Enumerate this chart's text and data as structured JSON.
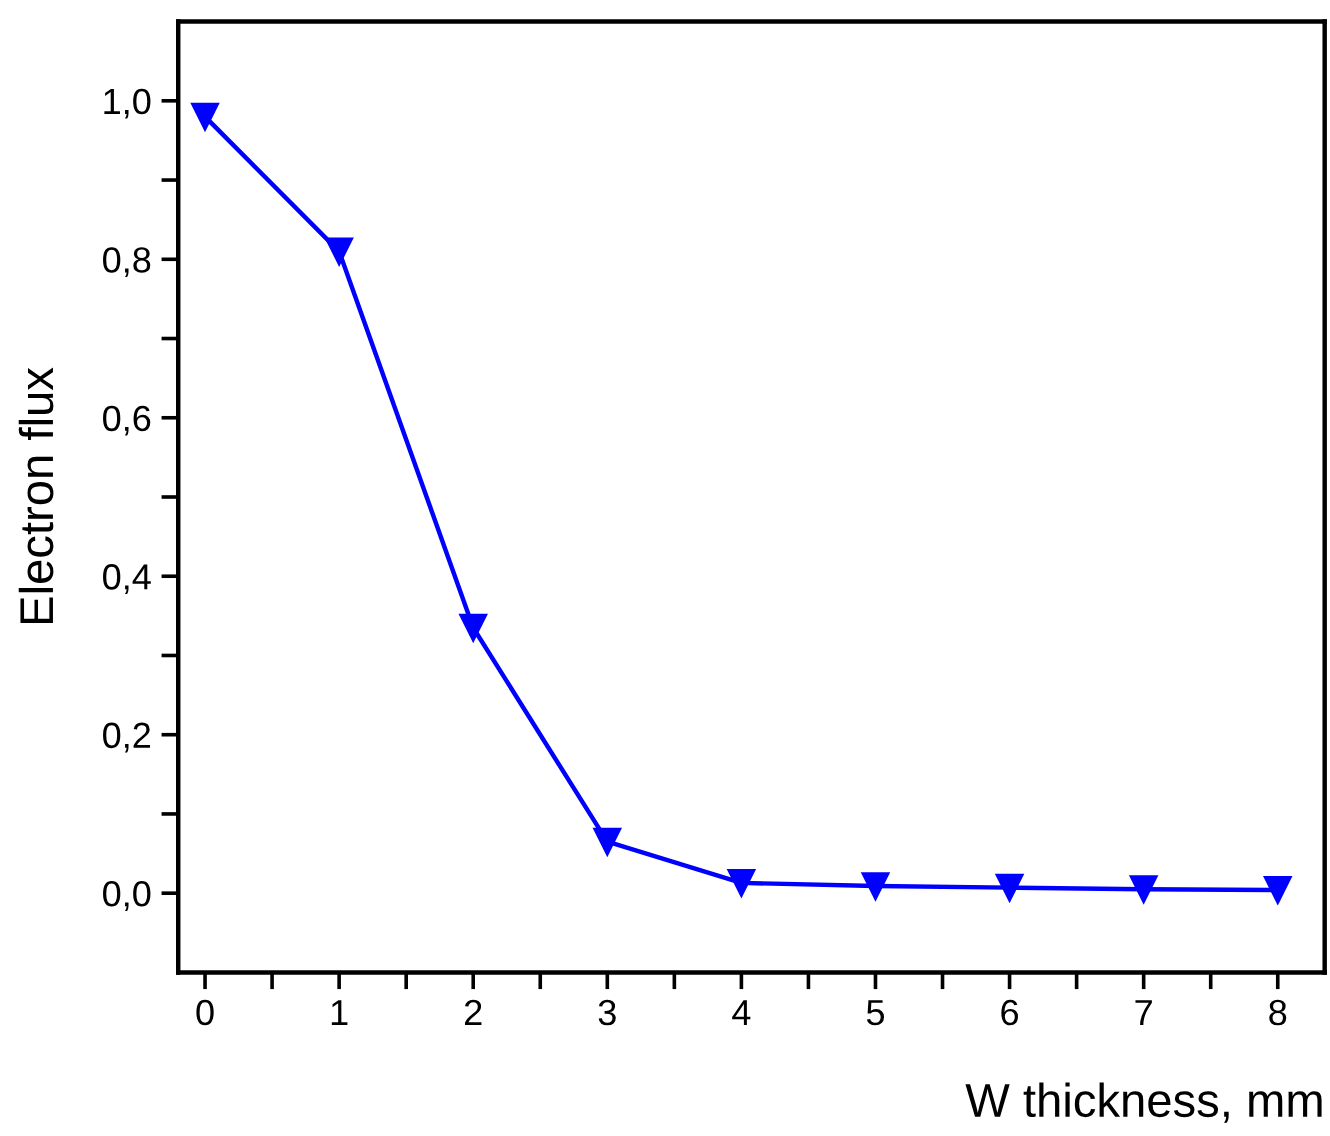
{
  "chart_data": {
    "type": "line",
    "xlabel": "W thickness, mm",
    "ylabel": "Electron flux",
    "x": [
      0,
      1,
      2,
      3,
      4,
      5,
      6,
      7,
      8
    ],
    "series": [
      {
        "color": "#0000ff",
        "values": [
          0.98,
          0.81,
          0.335,
          0.065,
          0.013,
          0.009,
          0.007,
          0.005,
          0.004
        ]
      }
    ],
    "marker": "triangle_down_alias",
    "line_style": "solid",
    "grid": false,
    "legend": false,
    "xlim": [
      -0.2,
      8.35
    ],
    "ylim": [
      -0.1,
      1.1
    ],
    "xticks": [
      0,
      {
        "value": 0.5,
        "label": null
      },
      1,
      {
        "value": 1.5,
        "label": null
      },
      2,
      {
        "value": 2.5,
        "label": null
      },
      3,
      {
        "value": 3.5,
        "label": null
      },
      4,
      {
        "value": 4.5,
        "label": null
      },
      5,
      {
        "value": 5.5,
        "label": null
      },
      6,
      {
        "value": 6.5,
        "label": null
      },
      7,
      {
        "value": 7.5,
        "label": null
      },
      8
    ],
    "yticks": [
      {
        "value": 0,
        "label": "0,0"
      },
      {
        "value": 0.1,
        "label": null
      },
      {
        "value": 0.2,
        "label": "0,2"
      },
      {
        "value": 0.3,
        "label": null
      },
      {
        "value": 0.4,
        "label": "0,4"
      },
      {
        "value": 0.5,
        "label": null
      },
      {
        "value": 0.6,
        "label": "0,6"
      },
      {
        "value": 0.7,
        "label": null
      },
      {
        "value": 0.8,
        "label": "0,8"
      },
      {
        "value": 0.9,
        "label": null
      },
      {
        "value": 1.0,
        "label": "1,0"
      }
    ]
  }
}
